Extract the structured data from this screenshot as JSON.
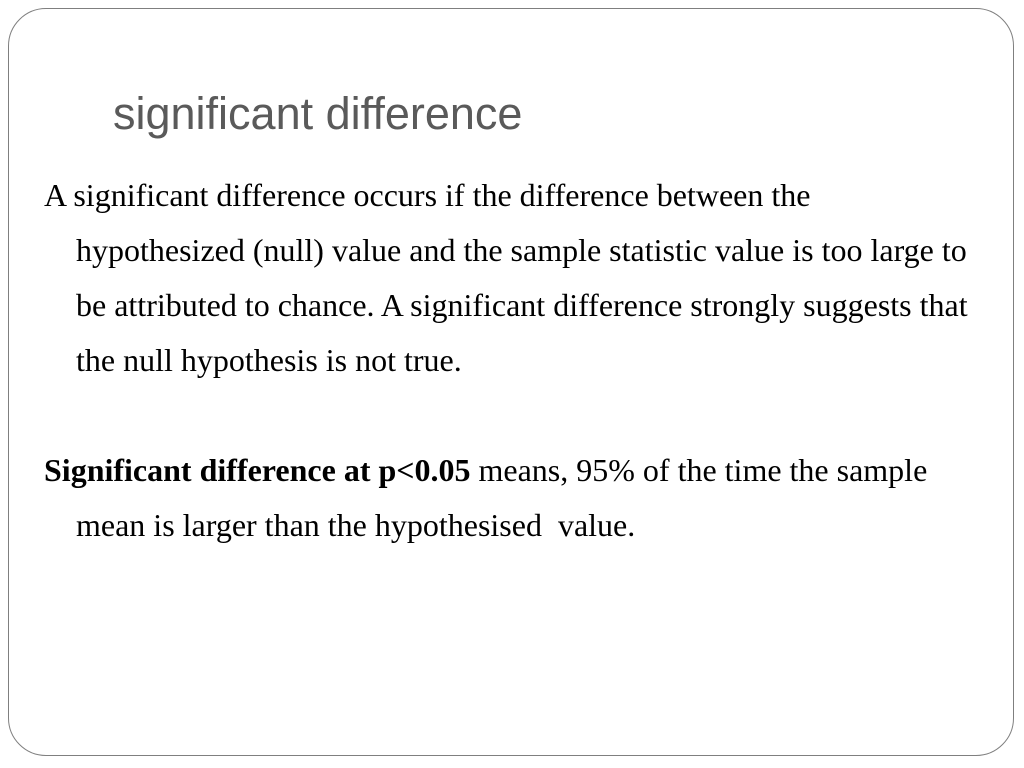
{
  "slide": {
    "title": "significant difference",
    "paragraphs": [
      {
        "text": "A significant difference occurs if the difference between the hypothesized (null) value and the sample statistic value is too large to be attributed to chance. A significant difference strongly suggests that the null hypothesis is not true."
      },
      {
        "bold": "Significant difference at p<0.05",
        "text": "means, 95% of the time the sample mean is larger than the hypothesised  value."
      }
    ]
  }
}
